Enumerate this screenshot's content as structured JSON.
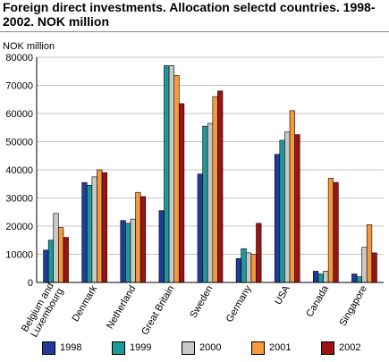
{
  "chart_data": {
    "type": "bar",
    "title": "Foreign direct investments. Allocation selectd countries. 1998-2002. NOK million",
    "ylabel": "NOK million",
    "xlabel": "",
    "ylim": [
      0,
      80000
    ],
    "yticks": [
      0,
      10000,
      20000,
      30000,
      40000,
      50000,
      60000,
      70000,
      80000
    ],
    "grid": true,
    "legend_position": "bottom",
    "categories": [
      "Belgium and Luxembourg",
      "Denmark",
      "Netherland",
      "Great Britain",
      "Sweden",
      "Germany",
      "USA",
      "Canada",
      "Singapore"
    ],
    "category_lines": [
      [
        "Belgium and",
        "Luxembourg"
      ],
      [
        "Denmark"
      ],
      [
        "Netherland"
      ],
      [
        "Great Britain"
      ],
      [
        "Sweden"
      ],
      [
        "Germany"
      ],
      [
        "USA"
      ],
      [
        "Canada"
      ],
      [
        "Singapore"
      ]
    ],
    "series": [
      {
        "name": "1998",
        "color": "#1f3c99",
        "values": [
          11500,
          35500,
          22000,
          25500,
          38500,
          8500,
          45500,
          4000,
          3000
        ]
      },
      {
        "name": "1999",
        "color": "#1f9898",
        "values": [
          15000,
          34500,
          21000,
          77000,
          55500,
          12000,
          50500,
          3000,
          2000
        ]
      },
      {
        "name": "2000",
        "color": "#c8c8c8",
        "values": [
          24500,
          37500,
          22500,
          77000,
          56500,
          10500,
          53500,
          4000,
          12500
        ]
      },
      {
        "name": "2001",
        "color": "#f59a3c",
        "values": [
          19500,
          40000,
          32000,
          73500,
          66000,
          10000,
          61000,
          37000,
          20500
        ]
      },
      {
        "name": "2002",
        "color": "#9b1313",
        "values": [
          16000,
          39000,
          30500,
          63500,
          68000,
          21000,
          52500,
          35500,
          10500
        ]
      }
    ]
  }
}
